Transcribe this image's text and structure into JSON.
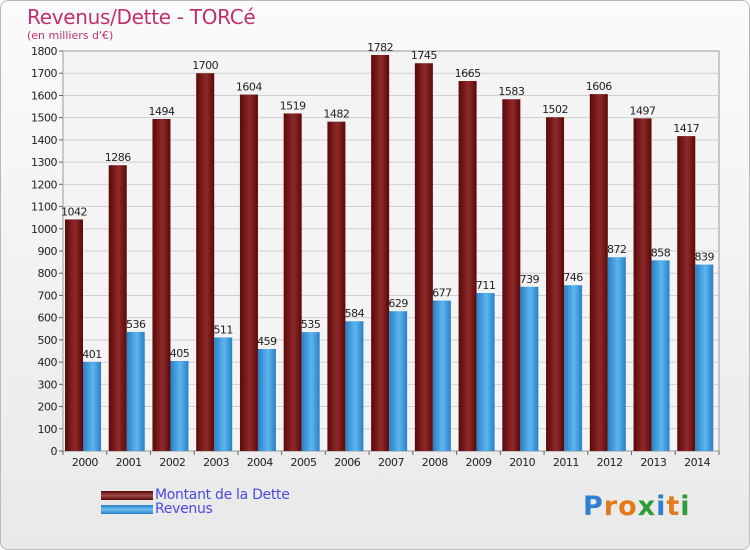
{
  "title": "Revenus/Dette - TORCé",
  "subtitle": "(en milliers d'€)",
  "legend": [
    {
      "label": "Montant de la Dette",
      "color": "#6b0e0e"
    },
    {
      "label": "Revenus",
      "color": "#3d9ee0"
    }
  ],
  "logo_letters": [
    "P",
    "r",
    "o",
    "x",
    "i",
    "t",
    "i"
  ],
  "logo_colors": [
    "#2f7fd0",
    "#e07a1a",
    "#e07a1a",
    "#2f9c3c",
    "#2f7fd0",
    "#e07a1a",
    "#2f9c3c"
  ],
  "chart_data": {
    "type": "bar",
    "title": "Revenus/Dette - TORCé",
    "subtitle": "(en milliers d'€)",
    "categories": [
      "2000",
      "2001",
      "2002",
      "2003",
      "2004",
      "2005",
      "2006",
      "2007",
      "2008",
      "2009",
      "2010",
      "2011",
      "2012",
      "2013",
      "2014"
    ],
    "series": [
      {
        "name": "Montant de la Dette",
        "color": "#7a1a1a",
        "values": [
          1042,
          1286,
          1494,
          1700,
          1604,
          1519,
          1482,
          1782,
          1745,
          1665,
          1583,
          1502,
          1606,
          1497,
          1417
        ]
      },
      {
        "name": "Revenus",
        "color": "#3d9ee0",
        "values": [
          401,
          536,
          405,
          511,
          459,
          535,
          584,
          629,
          677,
          711,
          739,
          746,
          872,
          858,
          839
        ]
      }
    ],
    "ylim": [
      0,
      1800
    ],
    "ytick_step": 100,
    "grid": true,
    "legend_position": "bottom-left"
  }
}
